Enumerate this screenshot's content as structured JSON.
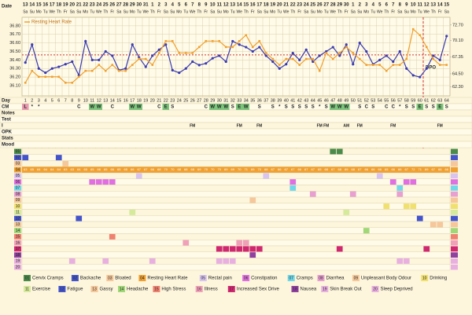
{
  "chart_data": {
    "type": "line",
    "date_label": "Date",
    "dates": [
      13,
      14,
      15,
      16,
      17,
      18,
      19,
      20,
      21,
      22,
      23,
      24,
      25,
      26,
      27,
      28,
      29,
      30,
      31,
      1,
      2,
      3,
      4,
      5,
      6,
      7,
      8,
      9,
      10,
      11,
      12,
      13,
      14,
      15,
      16,
      17,
      18,
      19,
      20,
      21,
      22,
      23,
      24,
      25,
      26,
      27,
      28,
      29,
      30,
      1,
      2,
      3,
      4,
      5,
      6,
      7,
      8,
      9,
      10,
      11,
      12,
      13,
      14,
      15
    ],
    "weekdays": [
      "Sa",
      "Su",
      "Mo",
      "Tu",
      "We",
      "Th",
      "Fr",
      "Sa",
      "Su",
      "Mo",
      "Tu",
      "We",
      "Th",
      "Fr",
      "Sa",
      "Su",
      "Mo",
      "Tu",
      "We",
      "Th",
      "Fr",
      "Sa",
      "Su",
      "Mo",
      "Tu",
      "We",
      "Th",
      "Fr",
      "Sa",
      "Su",
      "Mo",
      "Tu",
      "We",
      "Th",
      "Fr",
      "Sa",
      "Su",
      "Mo",
      "Tu",
      "We",
      "Th",
      "Fr",
      "Sa",
      "Su",
      "Mo",
      "Tu",
      "We",
      "Th",
      "Fr",
      "Sa",
      "Su",
      "Mo",
      "Tu",
      "We",
      "Th",
      "Fr",
      "Sa",
      "Su",
      "Mo",
      "Tu",
      "We",
      "Th",
      "Fr",
      "Sa"
    ],
    "days": [
      1,
      2,
      3,
      4,
      5,
      6,
      7,
      8,
      9,
      10,
      11,
      12,
      13,
      14,
      15,
      16,
      17,
      18,
      19,
      20,
      21,
      22,
      23,
      24,
      25,
      26,
      27,
      28,
      29,
      30,
      31,
      32,
      33,
      34,
      35,
      36,
      37,
      38,
      39,
      40,
      41,
      42,
      43,
      44,
      45,
      46,
      47,
      48,
      49,
      50,
      51,
      52,
      53,
      54,
      55,
      56,
      57,
      58,
      59,
      60,
      61,
      62,
      63,
      64
    ],
    "series": [
      {
        "color": "#3a3ab0",
        "values": [
          36.37,
          36.58,
          36.3,
          36.25,
          36.3,
          36.32,
          36.35,
          36.38,
          36.22,
          36.62,
          36.4,
          36.4,
          36.5,
          36.45,
          36.28,
          36.3,
          36.58,
          36.43,
          36.32,
          36.45,
          36.52,
          36.58,
          36.28,
          36.25,
          36.3,
          36.38,
          36.34,
          36.36,
          36.42,
          36.45,
          36.38,
          36.62,
          36.58,
          36.55,
          36.5,
          36.55,
          36.45,
          36.38,
          36.3,
          36.35,
          36.48,
          36.4,
          36.52,
          36.38,
          36.45,
          36.5,
          36.55,
          36.45,
          36.58,
          36.35,
          36.6,
          36.5,
          36.35,
          36.4,
          36.45,
          36.38,
          36.5,
          36.3,
          36.22,
          36.2,
          36.3,
          36.45,
          36.4,
          36.68
        ]
      },
      {
        "name": "Resting Heart Rate",
        "color": "#f0a030",
        "axis": "y2",
        "values": [
          63,
          65,
          64,
          64,
          64,
          64,
          63,
          63,
          64,
          65,
          65,
          66,
          65,
          66,
          65,
          65,
          66,
          67,
          67,
          66,
          68,
          70,
          70,
          68,
          68,
          68,
          69,
          70,
          70,
          70,
          69,
          69,
          70,
          71,
          69,
          70,
          68,
          67,
          66,
          67,
          67,
          66,
          67,
          67,
          65,
          68,
          67,
          68,
          69,
          68,
          67,
          66,
          66,
          66,
          65,
          66,
          66,
          67,
          72,
          71,
          69,
          67,
          66,
          66
        ]
      }
    ],
    "ylim": [
      35.98,
      36.9
    ],
    "yticks": [
      {
        "value": 36.8,
        "label": "36.80"
      },
      {
        "value": 36.7,
        "label": "36.70"
      },
      {
        "value": 36.6,
        "label": "36.60"
      },
      {
        "value": 36.5,
        "label": "36.50"
      },
      {
        "value": 36.4,
        "label": "36.40"
      },
      {
        "value": 36.3,
        "label": "36.30"
      },
      {
        "value": 36.2,
        "label": "36.20"
      },
      {
        "value": 36.1,
        "label": "36.10"
      }
    ],
    "y2lim": [
      60.8,
      74.0
    ],
    "y2ticks": [
      {
        "value": 72.7,
        "label": "72.70"
      },
      {
        "value": 70.1,
        "label": "70.10"
      },
      {
        "value": 67.35,
        "label": "67.35"
      },
      {
        "value": 64.5,
        "label": "64.50"
      },
      {
        "value": 62.3,
        "label": "62.30"
      }
    ],
    "coverline": 36.46,
    "dpo_day": 61,
    "dpo_label": "DPO",
    "row_labels": [
      "Day",
      "CM",
      "Notes",
      "Test",
      "I",
      "OPK",
      "Stats",
      "Mood"
    ],
    "cm": [
      "L",
      "*",
      "*",
      null,
      null,
      null,
      null,
      null,
      "C",
      null,
      "W",
      "W",
      null,
      "C",
      null,
      null,
      "W",
      "W",
      null,
      null,
      "C",
      "E",
      "S",
      null,
      null,
      null,
      null,
      "C",
      "W",
      "W",
      "W",
      "S",
      "E",
      "W",
      null,
      "S",
      null,
      "S",
      "*",
      "S",
      "S",
      "S",
      "S",
      "S",
      "*",
      "S",
      "W",
      "W",
      "W",
      null,
      "S",
      "C",
      "S",
      null,
      "C",
      "C",
      "*",
      "S",
      "S",
      "E",
      "S",
      "S",
      "E",
      "S"
    ],
    "cm_colors": {
      "W": "#7cc47c",
      "E": "#7cc47c",
      "L": "#e89ab0"
    },
    "intercourse": [
      null,
      null,
      null,
      null,
      null,
      null,
      null,
      null,
      null,
      null,
      null,
      null,
      null,
      null,
      null,
      null,
      null,
      null,
      null,
      null,
      null,
      null,
      null,
      null,
      null,
      "FM",
      null,
      null,
      null,
      null,
      null,
      null,
      "FM",
      null,
      null,
      "FM",
      null,
      null,
      null,
      null,
      null,
      null,
      null,
      null,
      "FM",
      "FM",
      null,
      null,
      "AM",
      null,
      "FM",
      null,
      null,
      null,
      null,
      "FM",
      null,
      null,
      null,
      null,
      null,
      null,
      "FM",
      null
    ],
    "symptoms": [
      {
        "code": "01",
        "name": "Cervix Cramps",
        "color": "#4a8a4a",
        "days": [
          47,
          48
        ]
      },
      {
        "code": "02",
        "name": "Backache",
        "color": "#4455cc",
        "days": [
          1,
          6
        ]
      },
      {
        "code": "03",
        "name": "Bloated",
        "color": "#f5c79a",
        "days": [
          7
        ]
      },
      {
        "code": "04",
        "name": "Resting Heart Rate",
        "color": "#f0a030",
        "days": []
      },
      {
        "code": "05",
        "name": "Rectal pain",
        "color": "#d9c4f0",
        "days": [
          18,
          37,
          54
        ]
      },
      {
        "code": "06",
        "name": "Constipation",
        "color": "#e070e0",
        "days": [
          11,
          12,
          13,
          14,
          41,
          56,
          58,
          59
        ]
      },
      {
        "code": "07",
        "name": "Cramps",
        "color": "#70d8e8",
        "days": [
          41,
          57
        ]
      },
      {
        "code": "08",
        "name": "Diarrhea",
        "color": "#e7a0d0",
        "days": [
          44,
          50,
          57
        ]
      },
      {
        "code": "09",
        "name": "Unpleasant Body Odour",
        "color": "#f5c79a",
        "days": [
          35
        ]
      },
      {
        "code": "10",
        "name": "Drinking",
        "color": "#f0e070",
        "days": [
          55,
          58,
          59
        ]
      },
      {
        "code": "11",
        "name": "Exercise",
        "color": "#d6ea9b",
        "days": [
          17,
          49
        ]
      },
      {
        "code": "12",
        "name": "Fatigue",
        "color": "#4455cc",
        "days": [
          9,
          60
        ]
      },
      {
        "code": "13",
        "name": "Gassy",
        "color": "#f5c79a",
        "days": [
          62,
          63
        ]
      },
      {
        "code": "14",
        "name": "Headache",
        "color": "#a0d878",
        "days": [
          52
        ]
      },
      {
        "code": "15",
        "name": "High Stress",
        "color": "#f08070",
        "days": [
          14
        ]
      },
      {
        "code": "16",
        "name": "Illness",
        "color": "#f0a0b8",
        "days": [
          25,
          33,
          34
        ]
      },
      {
        "code": "17",
        "name": "Increased Sex Drive",
        "color": "#d02870",
        "days": [
          30,
          31,
          32,
          33,
          34,
          35,
          36,
          48,
          61
        ]
      },
      {
        "code": "18",
        "name": "Nausea",
        "color": "#9040a0",
        "days": [
          35
        ]
      },
      {
        "code": "19",
        "name": "Skin Break Out",
        "color": "#e8b0e0",
        "days": [
          8,
          13,
          20,
          30,
          31,
          32,
          57,
          58
        ]
      },
      {
        "code": "20",
        "name": "Sleep Deprived",
        "color": "#e8b0e0",
        "days": []
      }
    ]
  }
}
